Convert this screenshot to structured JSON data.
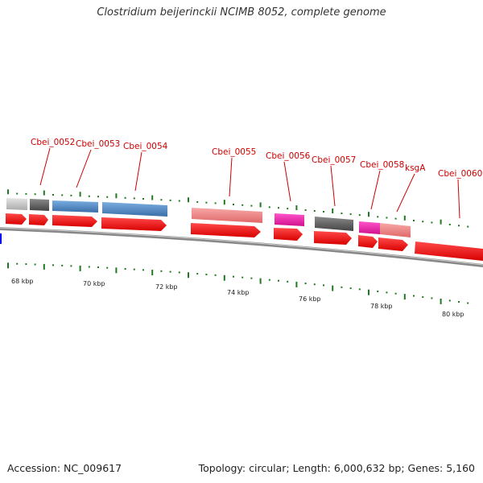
{
  "title": "Clostridium beijerinckii NCIMB 8052, complete genome",
  "accession_text": "Accession: NC_009617",
  "topology_text": "Topology: circular; Length: 6,000,632 bp; Genes: 5,160",
  "kbp_labels": [
    "68 kbp",
    "70 kbp",
    "72 kbp",
    "74 kbp",
    "76 kbp",
    "78 kbp",
    "80 kbp"
  ],
  "gene_labels": [
    "Cbei_0052",
    "Cbei_0053",
    "Cbei_0054",
    "Cbei_0055",
    "Cbei_0056",
    "Cbei_0057",
    "Cbei_0058",
    "ksgA",
    "Cbei_0060"
  ],
  "colors": {
    "label": "#cc0000",
    "tick": "#1f7a1f",
    "backbone": "#888888",
    "arrow": "#ff0000",
    "steelblue": "#4a86c0",
    "lightred": "#ef8080",
    "magenta": "#ee22aa",
    "darkgray": "#666666",
    "lightgray": "#c8c8c8",
    "blue_marker": "#0000ff"
  }
}
